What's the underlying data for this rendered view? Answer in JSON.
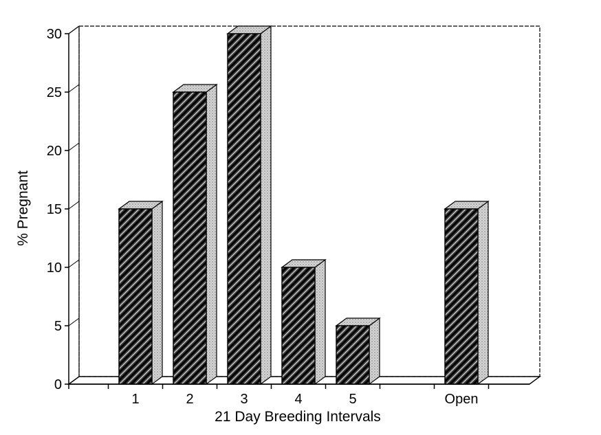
{
  "chart_data": {
    "type": "bar",
    "categories": [
      "1",
      "2",
      "3",
      "4",
      "5",
      "",
      "Open"
    ],
    "values": [
      15,
      25,
      30,
      10,
      5,
      null,
      15
    ],
    "xlabel": "21 Day Breeding Intervals",
    "ylabel": "% Pregnant",
    "ylim": [
      0,
      30
    ],
    "yticks": [
      "0",
      "5",
      "10",
      "15",
      "20",
      "25",
      "30"
    ],
    "grid": false,
    "legend": "none",
    "style": "3d-hatched",
    "colors": {
      "hatch": "#000000",
      "bar_bg": "#4a4a4a",
      "side": "#c8c8c8",
      "top": "#d4d4d4"
    }
  }
}
